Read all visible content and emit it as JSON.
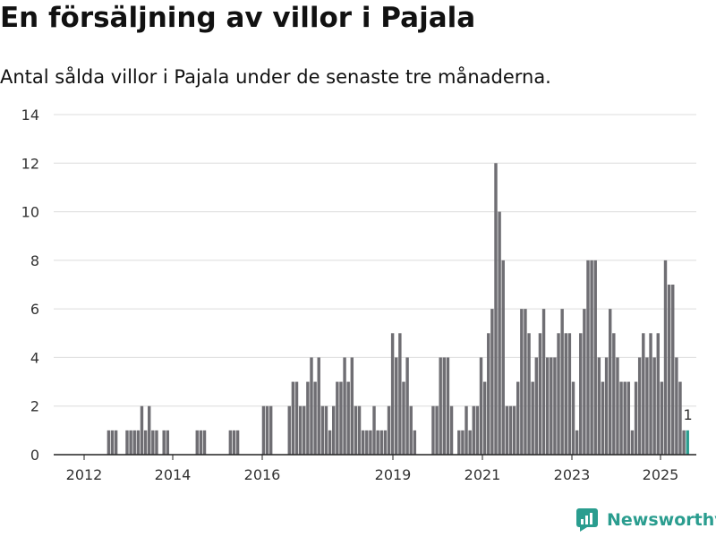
{
  "header": {
    "title": "En försäljning av villor i Pajala",
    "subtitle": "Antal sålda villor i Pajala under de senaste tre månaderna."
  },
  "brand": {
    "name": "Newsworthy",
    "color": "#2a9d8f"
  },
  "chart_data": {
    "type": "bar",
    "xlabel": "",
    "ylabel": "",
    "ylim": [
      0,
      14
    ],
    "yticks": [
      "0",
      "2",
      "4",
      "6",
      "8",
      "10",
      "12",
      "14"
    ],
    "xticks": [
      "2012",
      "2014",
      "2016",
      "2019",
      "2021",
      "2023",
      "2025"
    ],
    "grid": true,
    "bar_color": "#6f6e73",
    "highlight_color": "#2a9d8f",
    "last_label": "1",
    "series": [
      {
        "values": [
          0,
          0,
          0,
          0,
          0,
          0,
          0,
          0,
          0,
          0,
          0,
          0,
          0,
          0,
          1,
          1,
          1,
          0,
          0,
          1,
          1,
          1,
          1,
          2,
          1,
          2,
          1,
          1,
          0,
          1,
          1,
          0,
          0,
          0,
          0,
          0,
          0,
          0,
          1,
          1,
          1,
          0,
          0,
          0,
          0,
          0,
          0,
          1,
          1,
          1,
          0,
          0,
          0,
          0,
          0,
          0,
          2,
          2,
          2,
          0,
          0,
          0,
          0,
          2,
          3,
          3,
          2,
          2,
          3,
          4,
          3,
          4,
          2,
          2,
          1,
          2,
          3,
          3,
          4,
          3,
          4,
          2,
          2,
          1,
          1,
          1,
          2,
          1,
          1,
          1,
          2,
          5,
          4,
          5,
          3,
          4,
          2,
          1,
          0,
          0,
          0,
          0,
          2,
          2,
          4,
          4,
          4,
          2,
          0,
          1,
          1,
          2,
          1,
          2,
          2,
          4,
          3,
          5,
          6,
          12,
          10,
          8,
          2,
          2,
          2,
          3,
          6,
          6,
          5,
          3,
          4,
          5,
          6,
          4,
          4,
          4,
          5,
          6,
          5,
          5,
          3,
          1,
          5,
          6,
          8,
          8,
          8,
          4,
          3,
          4,
          6,
          5,
          4,
          3,
          3,
          3,
          1,
          3,
          4,
          5,
          4,
          5,
          4,
          5,
          3,
          8,
          7,
          7,
          4,
          3,
          1,
          1
        ]
      }
    ]
  }
}
